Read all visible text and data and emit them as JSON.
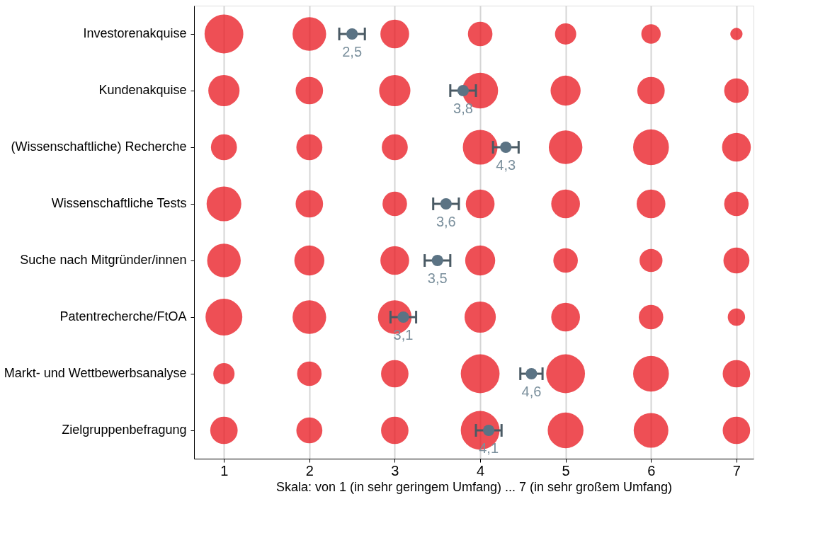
{
  "chart_data": {
    "type": "scatter",
    "orientation": "horizontal",
    "xlabel": "Skala: von 1 (in sehr geringem Umfang) ... 7 (in sehr großem Umfang)",
    "categories": [
      "Investorenakquise",
      "Kundenakquise",
      "(Wissenschaftliche) Recherche",
      "Wissenschaftliche Tests",
      "Suche nach Mitgründer/innen",
      "Patentrecherche/FtOA",
      "Markt- und Wettbewerbsanalyse",
      "Zielgruppenbefragung"
    ],
    "xlim": [
      0.65,
      7.2
    ],
    "xticks": [
      1,
      2,
      3,
      4,
      5,
      6,
      7
    ],
    "grid": "x",
    "series": [
      {
        "type": "bubble",
        "color": "#e8141c",
        "values": [
          1,
          1,
          1,
          1,
          1,
          1,
          1,
          1
        ],
        "sizes": [
          1.0,
          0.65,
          0.45,
          0.8,
          0.75,
          0.9,
          0.3,
          0.5
        ]
      },
      {
        "type": "bubble",
        "color": "#e8141c",
        "values": [
          2,
          2,
          2,
          2,
          2,
          2,
          2,
          2
        ],
        "sizes": [
          0.75,
          0.5,
          0.45,
          0.5,
          0.6,
          0.75,
          0.4,
          0.45
        ]
      },
      {
        "type": "bubble",
        "color": "#e8141c",
        "values": [
          3,
          3,
          3,
          3,
          3,
          3,
          3,
          3
        ],
        "sizes": [
          0.55,
          0.65,
          0.45,
          0.4,
          0.55,
          0.75,
          0.5,
          0.5
        ]
      },
      {
        "type": "bubble",
        "color": "#e8141c",
        "values": [
          4,
          4,
          4,
          4,
          4,
          4,
          4,
          4
        ],
        "sizes": [
          0.4,
          0.85,
          0.8,
          0.55,
          0.6,
          0.65,
          1.0,
          1.0
        ]
      },
      {
        "type": "bubble",
        "color": "#e8141c",
        "values": [
          5,
          5,
          5,
          5,
          5,
          5,
          5,
          5
        ],
        "sizes": [
          0.3,
          0.6,
          0.75,
          0.55,
          0.4,
          0.55,
          1.0,
          0.85
        ]
      },
      {
        "type": "bubble",
        "color": "#e8141c",
        "values": [
          6,
          6,
          6,
          6,
          6,
          6,
          6,
          6
        ],
        "sizes": [
          0.25,
          0.5,
          0.85,
          0.55,
          0.35,
          0.4,
          0.85,
          0.8
        ]
      },
      {
        "type": "bubble",
        "color": "#e8141c",
        "values": [
          7,
          7,
          7,
          7,
          7,
          7,
          7,
          7
        ],
        "sizes": [
          0.1,
          0.4,
          0.55,
          0.4,
          0.45,
          0.2,
          0.5,
          0.5
        ]
      },
      {
        "type": "scatter",
        "color": "#5b7384",
        "marker": "circle",
        "values": [
          2.5,
          3.8,
          4.3,
          3.6,
          3.5,
          3.1,
          4.6,
          4.1
        ],
        "errors": [
          0.15,
          0.15,
          0.15,
          0.15,
          0.15,
          0.15,
          0.13,
          0.15
        ],
        "value_labels": [
          "2,5",
          "3,8",
          "4,3",
          "3,6",
          "3,5",
          "3,1",
          "4,6",
          "4,1"
        ]
      }
    ]
  }
}
